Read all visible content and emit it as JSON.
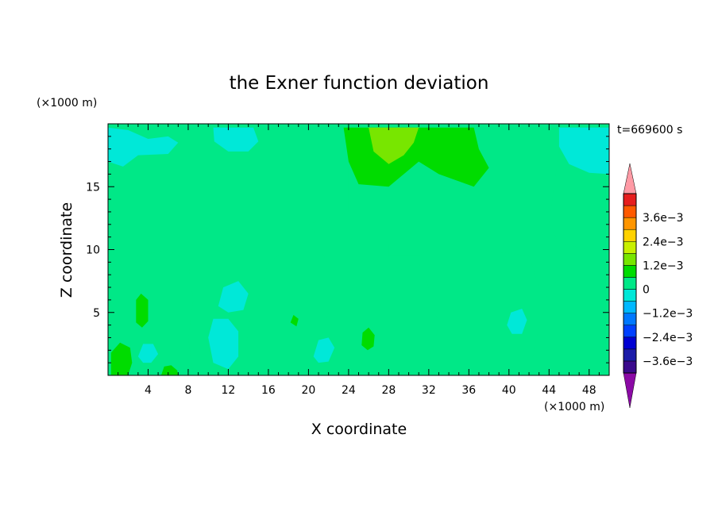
{
  "chart_data": {
    "type": "heatmap",
    "title": "the Exner function deviation",
    "xlabel": "X coordinate",
    "ylabel": "Z coordinate",
    "x_unit": "(×1000 m)",
    "y_unit": "(×1000 m)",
    "time_label": "t=669600 s",
    "xlim": [
      0,
      50
    ],
    "ylim": [
      0,
      20
    ],
    "x_ticks": [
      4,
      8,
      12,
      16,
      20,
      24,
      28,
      32,
      36,
      40,
      44,
      48
    ],
    "y_ticks": [
      5,
      10,
      15
    ],
    "colorbar": {
      "levels": [
        -0.0042,
        -0.0036,
        -0.003,
        -0.0024,
        -0.0018,
        -0.0012,
        -0.0006,
        0,
        0.0006,
        0.0012,
        0.0018,
        0.0024,
        0.003,
        0.0036,
        0.0042
      ],
      "colors": [
        "#3a0a8c",
        "#1c1ca8",
        "#0000d2",
        "#0040ff",
        "#0078ff",
        "#00b8ff",
        "#00e8d8",
        "#00e887",
        "#00dc00",
        "#78e600",
        "#c8f000",
        "#ffd200",
        "#ff9600",
        "#ff5a00",
        "#e61e1e"
      ],
      "over_color": "#ff9aa5",
      "under_color": "#8b0aa5",
      "labels": [
        {
          "value": 0.0036,
          "text": "3.6e−3"
        },
        {
          "value": 0.0024,
          "text": "2.4e−3"
        },
        {
          "value": 0.0012,
          "text": "1.2e−3"
        },
        {
          "value": 0,
          "text": "0"
        },
        {
          "value": -0.0012,
          "text": "−1.2e−3"
        },
        {
          "value": -0.0024,
          "text": "−2.4e−3"
        },
        {
          "value": -0.0036,
          "text": "−3.6e−3"
        }
      ]
    },
    "field_regions": [
      {
        "level": "0 to 6e-4",
        "polygon": [
          [
            23,
            19.7
          ],
          [
            50,
            19.7
          ],
          [
            50,
            18
          ],
          [
            45,
            18
          ],
          [
            44,
            12
          ],
          [
            45,
            10.5
          ],
          [
            48,
            10
          ],
          [
            50,
            10
          ],
          [
            50,
            7
          ],
          [
            43,
            7
          ],
          [
            42,
            9.5
          ],
          [
            37,
            10
          ],
          [
            32,
            10
          ],
          [
            31,
            9.5
          ],
          [
            28,
            9.5
          ],
          [
            28,
            10.5
          ],
          [
            25,
            10.5
          ],
          [
            24,
            11
          ],
          [
            21,
            11
          ],
          [
            20,
            12
          ],
          [
            22,
            12.5
          ],
          [
            24,
            13
          ],
          [
            24,
            19
          ]
        ]
      },
      {
        "level": "0 to 6e-4",
        "polygon": [
          [
            0,
            8
          ],
          [
            3,
            9.5
          ],
          [
            6,
            10
          ],
          [
            8,
            9
          ],
          [
            8.5,
            6
          ],
          [
            8,
            3
          ],
          [
            8.5,
            0
          ],
          [
            0,
            0
          ]
        ]
      },
      {
        "level": "0 to 6e-4",
        "polygon": [
          [
            13.5,
            0
          ],
          [
            14,
            4
          ],
          [
            15,
            6
          ],
          [
            16,
            9
          ],
          [
            18,
            10
          ],
          [
            21,
            10
          ],
          [
            22,
            9
          ],
          [
            22,
            5
          ],
          [
            21,
            2
          ],
          [
            22,
            0
          ]
        ]
      },
      {
        "level": "0 to 6e-4",
        "polygon": [
          [
            25,
            0
          ],
          [
            26,
            3
          ],
          [
            27,
            5
          ],
          [
            28,
            8
          ],
          [
            31,
            9
          ],
          [
            32,
            7
          ],
          [
            33,
            4
          ],
          [
            32,
            1
          ],
          [
            33,
            0
          ]
        ]
      },
      {
        "level": "0 to 6e-4",
        "polygon": [
          [
            42,
            0
          ],
          [
            43,
            4
          ],
          [
            44,
            7
          ],
          [
            47,
            9
          ],
          [
            49.5,
            9
          ],
          [
            50,
            6
          ],
          [
            49.5,
            3
          ],
          [
            49,
            0
          ]
        ]
      },
      {
        "level": "0 to 6e-4",
        "polygon": [
          [
            10,
            12.8
          ],
          [
            11.5,
            12.6
          ],
          [
            12,
            11.2
          ],
          [
            12.5,
            9.8
          ],
          [
            11.2,
            10.4
          ],
          [
            10.2,
            11.5
          ]
        ]
      },
      {
        "level": "6e-4 to 1.2e-3",
        "polygon": [
          [
            23.5,
            19.7
          ],
          [
            36.5,
            19.7
          ],
          [
            37,
            18
          ],
          [
            38,
            16.5
          ],
          [
            36.5,
            15
          ],
          [
            33,
            16
          ],
          [
            31,
            17
          ],
          [
            28,
            15
          ],
          [
            25,
            15.2
          ],
          [
            24,
            17
          ]
        ]
      },
      {
        "level": "1.2e-3 to 1.8e-3",
        "polygon": [
          [
            26,
            19.7
          ],
          [
            31,
            19.7
          ],
          [
            30.5,
            18.5
          ],
          [
            29.5,
            17.5
          ],
          [
            28,
            16.8
          ],
          [
            26.5,
            17.8
          ]
        ]
      },
      {
        "level": "6e-4 to 1.2e-3",
        "polygon": [
          [
            0.3,
            0
          ],
          [
            0.3,
            1.8
          ],
          [
            1.2,
            2.6
          ],
          [
            2.2,
            2.2
          ],
          [
            2.4,
            1
          ],
          [
            2,
            0
          ]
        ]
      },
      {
        "level": "6e-4 to 1.2e-3",
        "polygon": [
          [
            2.8,
            4.2
          ],
          [
            2.8,
            6
          ],
          [
            3.3,
            6.5
          ],
          [
            4,
            6
          ],
          [
            4,
            4.3
          ],
          [
            3.4,
            3.8
          ]
        ]
      },
      {
        "level": "6e-4 to 1.2e-3",
        "polygon": [
          [
            5.3,
            0
          ],
          [
            5.6,
            0.7
          ],
          [
            6.3,
            0.8
          ],
          [
            6.9,
            0.4
          ],
          [
            7,
            0
          ]
        ]
      },
      {
        "level": "6e-4 to 1.2e-3",
        "polygon": [
          [
            25.3,
            2.4
          ],
          [
            25.4,
            3.4
          ],
          [
            26,
            3.8
          ],
          [
            26.6,
            3.2
          ],
          [
            26.5,
            2.3
          ],
          [
            25.9,
            2
          ]
        ]
      },
      {
        "level": "6e-4 to 1.2e-3",
        "polygon": [
          [
            18.2,
            4.2
          ],
          [
            18.5,
            4.8
          ],
          [
            19,
            4.5
          ],
          [
            18.8,
            3.9
          ]
        ]
      },
      {
        "level": "-6e-4 to 0",
        "polygon": [
          [
            0,
            19.7
          ],
          [
            2,
            19.5
          ],
          [
            4,
            18.8
          ],
          [
            6,
            19
          ],
          [
            7,
            18.5
          ],
          [
            6,
            17.6
          ],
          [
            3,
            17.5
          ],
          [
            1.5,
            16.6
          ],
          [
            0,
            17
          ]
        ]
      },
      {
        "level": "-6e-4 to 0",
        "polygon": [
          [
            10.5,
            19.7
          ],
          [
            14.5,
            19.7
          ],
          [
            15,
            18.6
          ],
          [
            14,
            17.8
          ],
          [
            12,
            17.8
          ],
          [
            10.6,
            18.6
          ]
        ]
      },
      {
        "level": "-6e-4 to 0",
        "polygon": [
          [
            45,
            19.7
          ],
          [
            50,
            19.7
          ],
          [
            50,
            16
          ],
          [
            48,
            16.1
          ],
          [
            46,
            16.8
          ],
          [
            45,
            18.2
          ]
        ]
      },
      {
        "level": "-6e-4 to 0",
        "polygon": [
          [
            10,
            3
          ],
          [
            10.5,
            1
          ],
          [
            12,
            0.5
          ],
          [
            13,
            1.5
          ],
          [
            13,
            3.5
          ],
          [
            12,
            4.5
          ],
          [
            10.5,
            4.5
          ]
        ]
      },
      {
        "level": "-6e-4 to 0",
        "polygon": [
          [
            11,
            5.5
          ],
          [
            11.5,
            7
          ],
          [
            13,
            7.5
          ],
          [
            14,
            6.5
          ],
          [
            13.5,
            5.2
          ],
          [
            12,
            5
          ]
        ]
      },
      {
        "level": "-6e-4 to 0",
        "polygon": [
          [
            20.5,
            1.5
          ],
          [
            21,
            2.8
          ],
          [
            22,
            3
          ],
          [
            22.6,
            2.2
          ],
          [
            22,
            1.1
          ],
          [
            21,
            1
          ]
        ]
      },
      {
        "level": "-6e-4 to 0",
        "polygon": [
          [
            39.8,
            4
          ],
          [
            40.2,
            5
          ],
          [
            41.3,
            5.3
          ],
          [
            41.8,
            4.4
          ],
          [
            41.3,
            3.3
          ],
          [
            40.3,
            3.3
          ]
        ]
      },
      {
        "level": "-6e-4 to 0",
        "polygon": [
          [
            3,
            1.5
          ],
          [
            3.5,
            2.5
          ],
          [
            4.5,
            2.5
          ],
          [
            5,
            1.7
          ],
          [
            4.3,
            1
          ],
          [
            3.5,
            1
          ]
        ]
      }
    ]
  }
}
